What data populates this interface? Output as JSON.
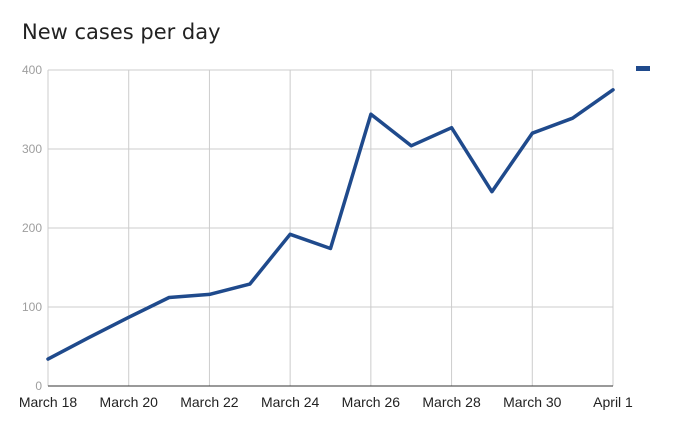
{
  "chart_data": {
    "type": "line",
    "title": "New cases per day",
    "xlabel": "",
    "ylabel": "",
    "ylim": [
      0,
      400
    ],
    "yticks": [
      "0",
      "100",
      "200",
      "300",
      "400"
    ],
    "xtick_labels": [
      "March 18",
      "March 20",
      "March 22",
      "March 24",
      "March 26",
      "March 28",
      "March 30",
      "April 1"
    ],
    "x": [
      "March 18",
      "March 19",
      "March 20",
      "March 21",
      "March 22",
      "March 23",
      "March 24",
      "March 25",
      "March 26",
      "March 27",
      "March 28",
      "March 29",
      "March 30",
      "March 31",
      "April 1"
    ],
    "series": [
      {
        "name": "",
        "values": [
          34,
          61,
          87,
          112,
          116,
          129,
          192,
          174,
          344,
          304,
          327,
          246,
          320,
          339,
          375
        ]
      }
    ],
    "grid": true,
    "legend": "top-right",
    "colors": {
      "line": "#1f4a8c",
      "grid": "#cccccc",
      "axis": "#333333"
    }
  }
}
